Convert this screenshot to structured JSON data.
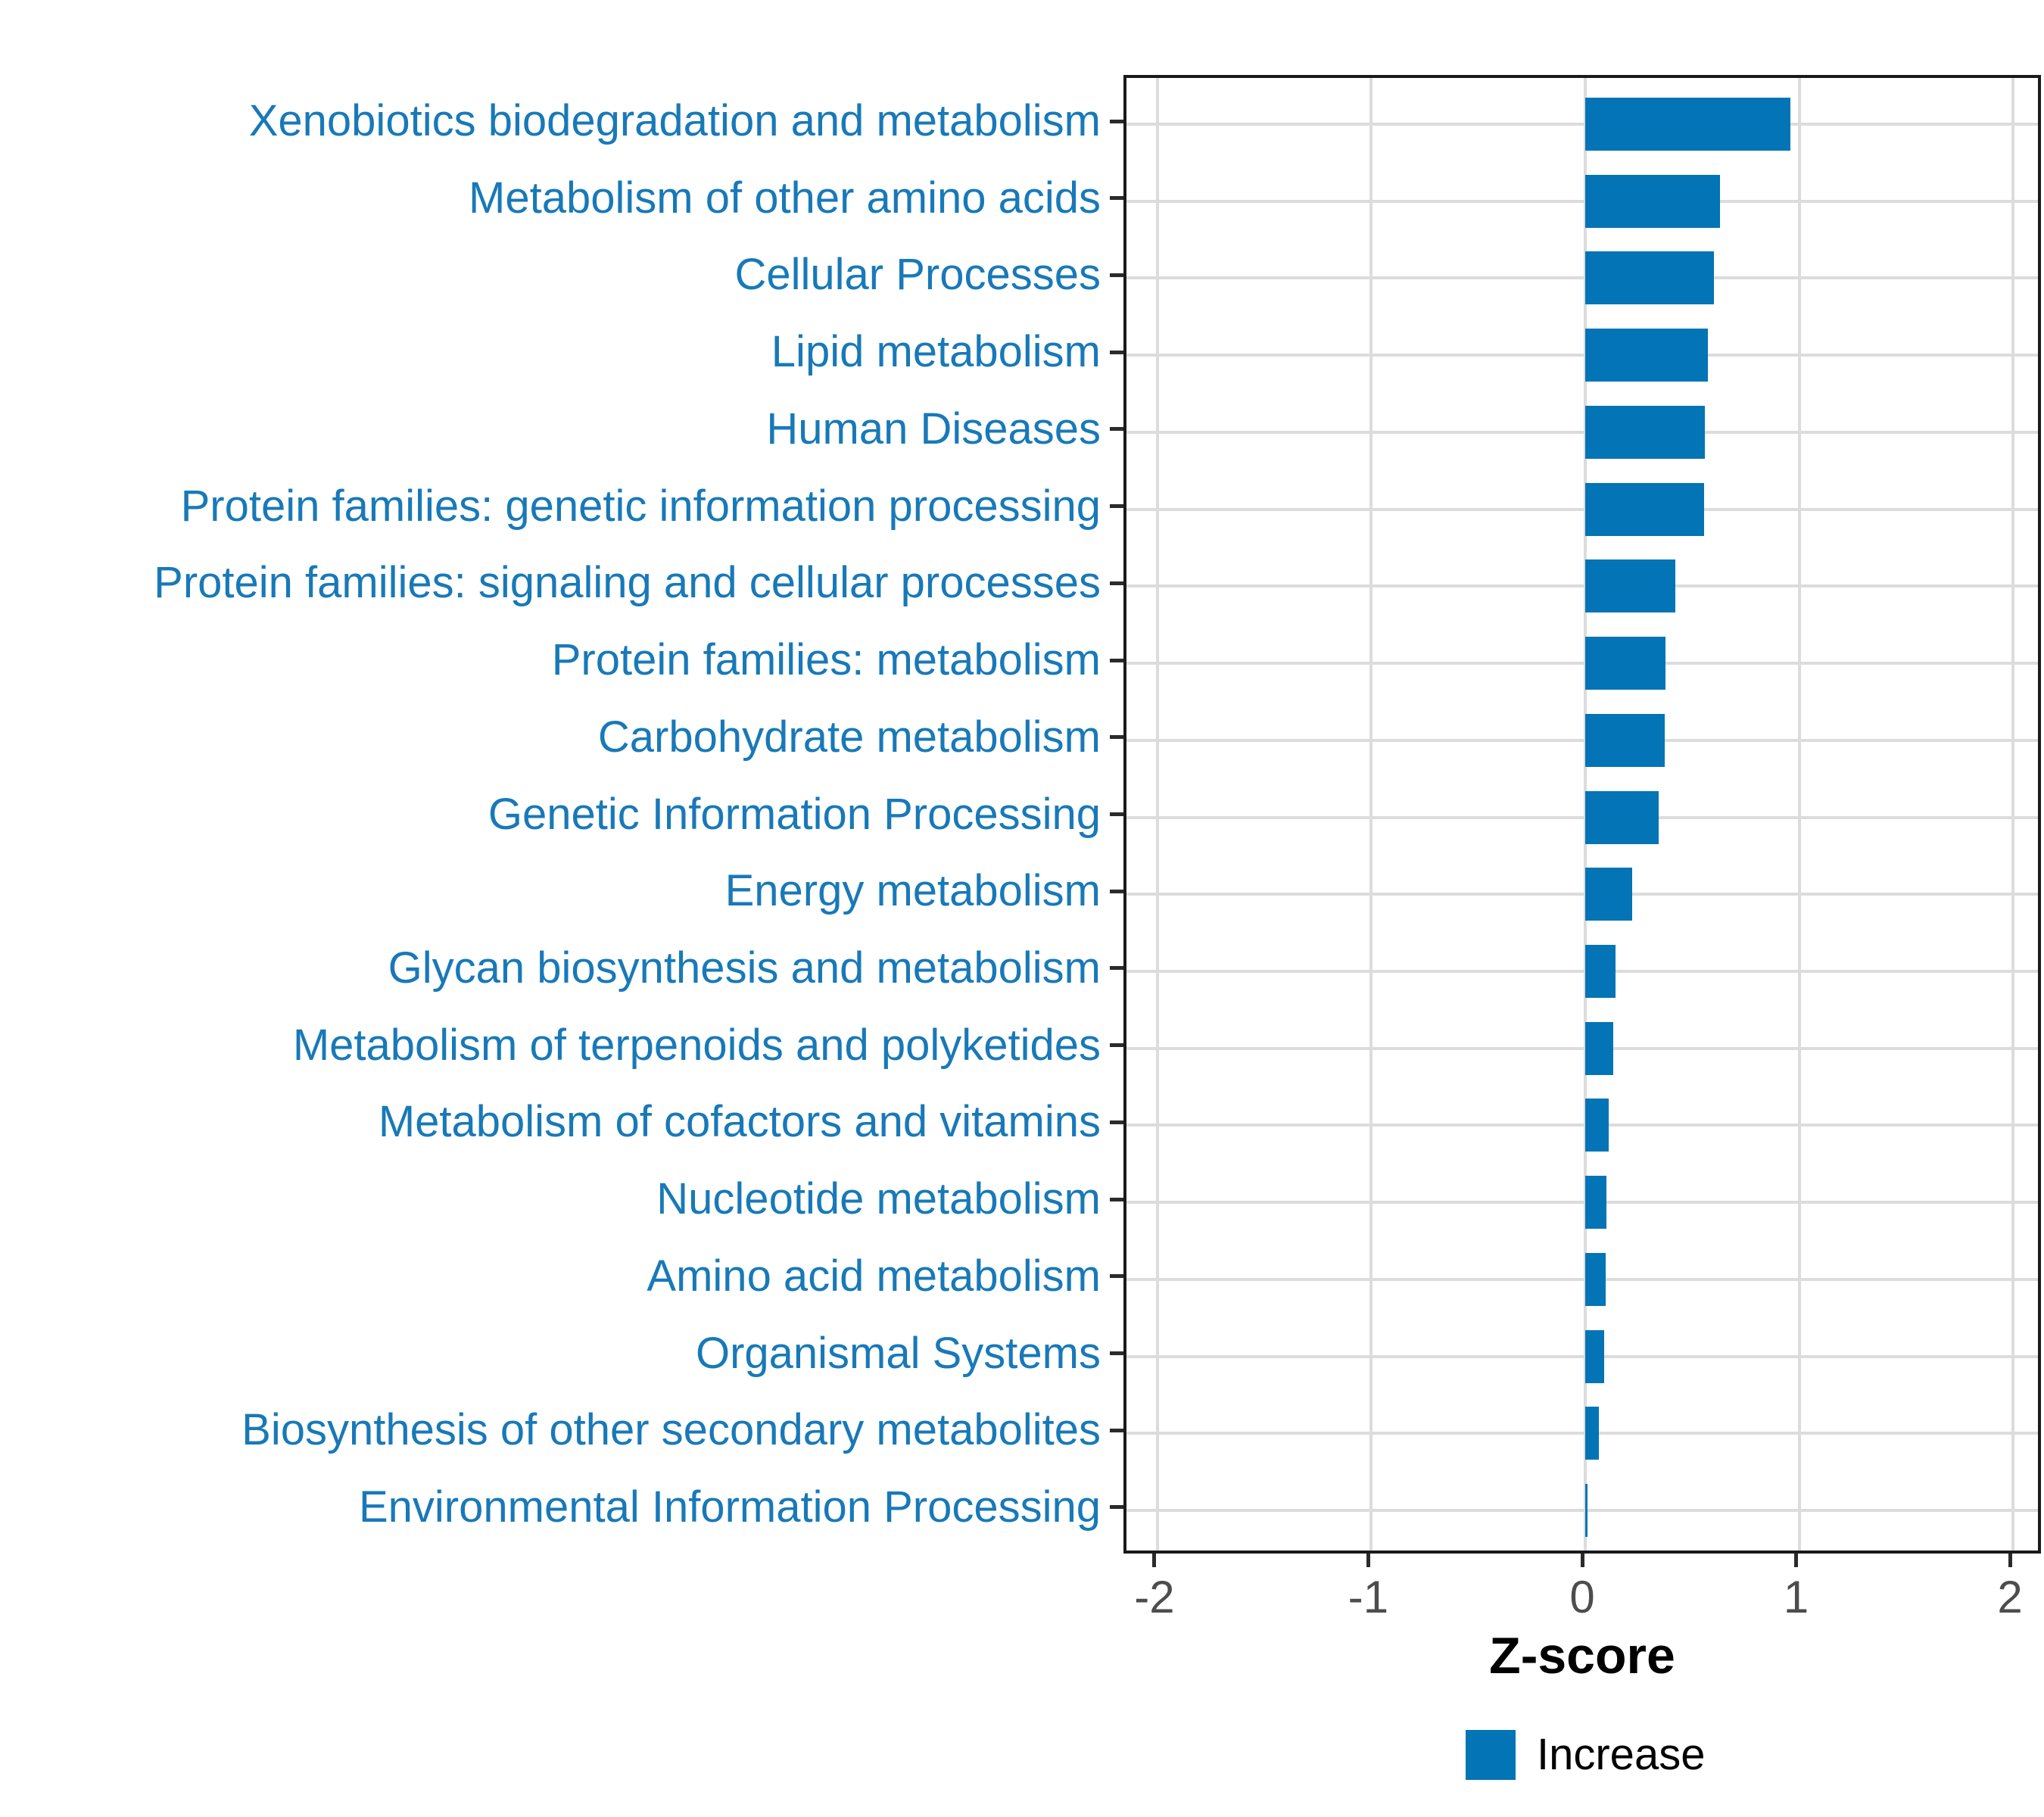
{
  "chart_data": {
    "type": "bar",
    "orientation": "horizontal",
    "title": "",
    "xlabel": "Z-score",
    "ylabel": "",
    "categories": [
      "Xenobiotics biodegradation and metabolism",
      "Metabolism of other amino acids",
      "Cellular Processes",
      "Lipid metabolism",
      "Human Diseases",
      "Protein families: genetic information processing",
      "Protein families: signaling and cellular processes",
      "Protein families: metabolism",
      "Carbohydrate metabolism",
      "Genetic Information Processing",
      "Energy metabolism",
      "Glycan biosynthesis and metabolism",
      "Metabolism of terpenoids and polyketides",
      "Metabolism of cofactors and vitamins",
      "Nucleotide metabolism",
      "Amino acid metabolism",
      "Organismal Systems",
      "Biosynthesis of other secondary metabolites",
      "Environmental Information Processing"
    ],
    "values": [
      0.96,
      0.63,
      0.6,
      0.575,
      0.56,
      0.555,
      0.42,
      0.375,
      0.37,
      0.345,
      0.22,
      0.14,
      0.13,
      0.11,
      0.1,
      0.095,
      0.09,
      0.065,
      0.012
    ],
    "xlim": [
      -2.145,
      2.145
    ],
    "x_ticks": [
      -2,
      -1,
      0,
      1,
      2
    ],
    "grid": "major vertical gridlines at integer Z-scores; horizontal gridline at each category",
    "legend": {
      "position": "bottom-center",
      "entries": [
        {
          "label": "Increase",
          "color": "#0374B5"
        }
      ]
    },
    "colors": {
      "bar": "#0374B5",
      "category_label": "#1879B8",
      "tick_label": "#4d4d4d",
      "axis_title": "#000000",
      "gridline": "#dcdcdc",
      "panel_border": "#1a1a1a",
      "tick_mark": "#2b2b2b",
      "background": "#ffffff"
    }
  }
}
